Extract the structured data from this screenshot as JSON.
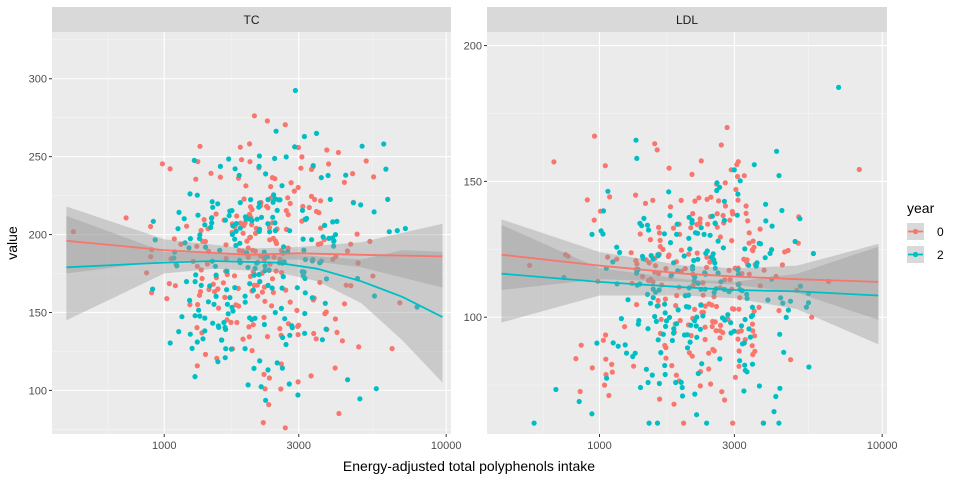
{
  "chart_data": {
    "type": "scatter",
    "xlabel": "Energy-adjusted total polyphenols intake",
    "ylabel": "value",
    "x_scale": "log10",
    "x_ticks": [
      1000,
      3000,
      10000
    ],
    "x_tick_labels": [
      "1000",
      "3000",
      "10000"
    ],
    "xlim": [
      400,
      10400
    ],
    "grid": true,
    "legend": {
      "title": "year",
      "placement": "right",
      "entries": [
        {
          "label": "0",
          "color": "#F8766D"
        },
        {
          "label": "2",
          "color": "#00BFC4"
        }
      ]
    },
    "panels": [
      {
        "strip": "TC",
        "ylim": [
          72,
          330
        ],
        "y_ticks": [
          100,
          150,
          200,
          250,
          300
        ],
        "y_tick_labels": [
          "100",
          "150",
          "200",
          "250",
          "300"
        ],
        "series": [
          {
            "name": "0",
            "color": "#F8766D",
            "smooth": [
              [
                450,
                196
              ],
              [
                1000,
                190
              ],
              [
                2000,
                187
              ],
              [
                3000,
                188
              ],
              [
                5000,
                187
              ],
              [
                9700,
                186
              ]
            ],
            "band": [
              [
                450,
                175,
                218
              ],
              [
                1000,
                183,
                197
              ],
              [
                2000,
                184,
                191
              ],
              [
                3000,
                184,
                192
              ],
              [
                5000,
                179,
                195
              ],
              [
                9700,
                166,
                207
              ]
            ]
          },
          {
            "name": "2",
            "color": "#00BFC4",
            "smooth": [
              [
                450,
                179
              ],
              [
                1000,
                182
              ],
              [
                1500,
                183
              ],
              [
                2500,
                182
              ],
              [
                3500,
                178
              ],
              [
                5000,
                170
              ],
              [
                7000,
                160
              ],
              [
                9700,
                147
              ]
            ],
            "band": [
              [
                450,
                145,
                212
              ],
              [
                1000,
                175,
                189
              ],
              [
                1500,
                178,
                188
              ],
              [
                2500,
                176,
                188
              ],
              [
                3500,
                170,
                186
              ],
              [
                5000,
                156,
                184
              ],
              [
                7000,
                132,
                190
              ],
              [
                9700,
                105,
                189
              ]
            ]
          }
        ]
      },
      {
        "strip": "LDL",
        "ylim": [
          57,
          205
        ],
        "y_ticks": [
          100,
          150,
          200
        ],
        "y_tick_labels": [
          "100",
          "150",
          "200"
        ],
        "series": [
          {
            "name": "0",
            "color": "#F8766D",
            "smooth": [
              [
                450,
                123
              ],
              [
                1000,
                119
              ],
              [
                2000,
                116
              ],
              [
                3000,
                115
              ],
              [
                5000,
                114
              ],
              [
                9700,
                113
              ]
            ],
            "band": [
              [
                450,
                110,
                136
              ],
              [
                1000,
                114,
                124
              ],
              [
                2000,
                113,
                119
              ],
              [
                3000,
                112,
                118
              ],
              [
                5000,
                109,
                119
              ],
              [
                9700,
                99,
                127
              ]
            ]
          },
          {
            "name": "2",
            "color": "#00BFC4",
            "smooth": [
              [
                450,
                116
              ],
              [
                1000,
                113
              ],
              [
                2000,
                111
              ],
              [
                3000,
                110
              ],
              [
                5000,
                109.5
              ],
              [
                9700,
                108
              ]
            ],
            "band": [
              [
                450,
                98,
                134
              ],
              [
                1000,
                108,
                118
              ],
              [
                2000,
                108,
                114
              ],
              [
                3000,
                107,
                113
              ],
              [
                5000,
                103,
                116
              ],
              [
                9700,
                90,
                126
              ]
            ]
          }
        ]
      }
    ]
  }
}
